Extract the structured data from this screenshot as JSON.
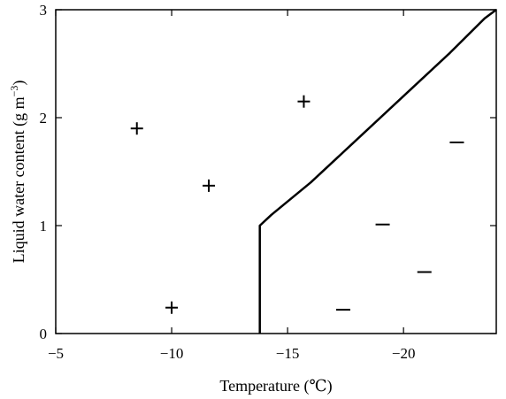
{
  "chart_data": {
    "type": "scatter",
    "xlabel": "Temperature (℃)",
    "ylabel": "Liquid water content (g m",
    "ylabel_sup": "−3",
    "ylabel_close": ")",
    "xlim": [
      -5,
      -24
    ],
    "ylim": [
      0,
      3
    ],
    "x_ticks": [
      -5,
      -10,
      -15,
      -20
    ],
    "x_tick_labels": [
      "−5",
      "−10",
      "−15",
      "−20"
    ],
    "y_ticks": [
      0,
      1,
      2,
      3
    ],
    "y_tick_labels": [
      "0",
      "1",
      "2",
      "3"
    ],
    "grid": false,
    "series": [
      {
        "marker": "plus",
        "points": [
          {
            "x": -8.5,
            "y": 1.9
          },
          {
            "x": -11.6,
            "y": 1.37
          },
          {
            "x": -15.7,
            "y": 2.15
          },
          {
            "x": -10.0,
            "y": 0.24
          }
        ]
      },
      {
        "marker": "minus",
        "points": [
          {
            "x": -22.3,
            "y": 1.77
          },
          {
            "x": -19.1,
            "y": 1.01
          },
          {
            "x": -20.9,
            "y": 0.57
          },
          {
            "x": -17.4,
            "y": 0.22
          }
        ]
      }
    ],
    "boundary_line": [
      {
        "x": -13.8,
        "y": 0
      },
      {
        "x": -13.8,
        "y": 1.0
      },
      {
        "x": -14.3,
        "y": 1.1
      },
      {
        "x": -16.0,
        "y": 1.4
      },
      {
        "x": -18.0,
        "y": 1.8
      },
      {
        "x": -20.0,
        "y": 2.2
      },
      {
        "x": -22.0,
        "y": 2.6
      },
      {
        "x": -23.5,
        "y": 2.92
      },
      {
        "x": -24.0,
        "y": 3.0
      }
    ]
  }
}
